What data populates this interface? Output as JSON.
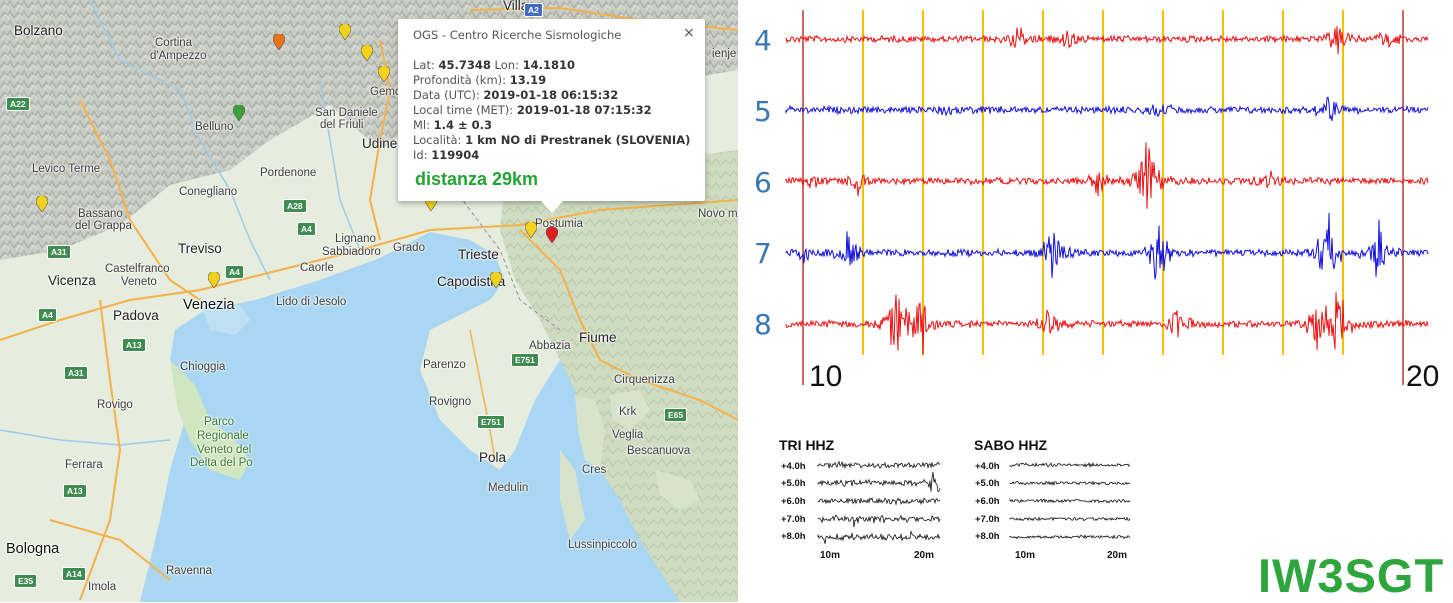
{
  "map": {
    "places": [
      {
        "key": "villaco",
        "text": "Villaco",
        "cls": "city"
      },
      {
        "key": "bolzano",
        "text": "Bolzano",
        "cls": "city"
      },
      {
        "key": "cortina1",
        "text": "Cortina",
        "cls": ""
      },
      {
        "key": "cortina2",
        "text": "d'Ampezzo",
        "cls": ""
      },
      {
        "key": "belluno",
        "text": "Belluno",
        "cls": ""
      },
      {
        "key": "gemona",
        "text": "Gemona",
        "cls": ""
      },
      {
        "key": "sandaniele1",
        "text": "San Daniele",
        "cls": ""
      },
      {
        "key": "sandaniele2",
        "text": "del Friuli",
        "cls": ""
      },
      {
        "key": "udine",
        "text": "Udine",
        "cls": "city"
      },
      {
        "key": "levico1",
        "text": "Levico Terme",
        "cls": ""
      },
      {
        "key": "pordenone",
        "text": "Pordenone",
        "cls": ""
      },
      {
        "key": "conegliano",
        "text": "Conegliano",
        "cls": ""
      },
      {
        "key": "bassano1",
        "text": "Bassano",
        "cls": ""
      },
      {
        "key": "bassano2",
        "text": "del Grappa",
        "cls": ""
      },
      {
        "key": "treviso",
        "text": "Treviso",
        "cls": "city"
      },
      {
        "key": "lignano1",
        "text": "Lignano",
        "cls": ""
      },
      {
        "key": "lignano2",
        "text": "Sabbiadoro",
        "cls": ""
      },
      {
        "key": "grado",
        "text": "Grado",
        "cls": ""
      },
      {
        "key": "caorle",
        "text": "Caorle",
        "cls": ""
      },
      {
        "key": "castelfranco1",
        "text": "Castelfranco",
        "cls": ""
      },
      {
        "key": "castelfranco2",
        "text": "Veneto",
        "cls": ""
      },
      {
        "key": "vicenza",
        "text": "Vicenza",
        "cls": "city"
      },
      {
        "key": "venezia",
        "text": "Venezia",
        "cls": "big"
      },
      {
        "key": "lidojesolo",
        "text": "Lido di Jesolo",
        "cls": ""
      },
      {
        "key": "padova",
        "text": "Padova",
        "cls": "city"
      },
      {
        "key": "chioggia",
        "text": "Chioggia",
        "cls": ""
      },
      {
        "key": "rovigo",
        "text": "Rovigo",
        "cls": ""
      },
      {
        "key": "parco1",
        "text": "Parco",
        "cls": "park"
      },
      {
        "key": "parco2",
        "text": "Regionale",
        "cls": "park"
      },
      {
        "key": "parco3",
        "text": "Veneto del",
        "cls": "park"
      },
      {
        "key": "parco4",
        "text": "Delta del Po",
        "cls": "park"
      },
      {
        "key": "ferrara",
        "text": "Ferrara",
        "cls": ""
      },
      {
        "key": "bologna",
        "text": "Bologna",
        "cls": "big"
      },
      {
        "key": "ravenna",
        "text": "Ravenna",
        "cls": ""
      },
      {
        "key": "imola",
        "text": "Imola",
        "cls": ""
      },
      {
        "key": "trieste",
        "text": "Trieste",
        "cls": "city"
      },
      {
        "key": "capodistria",
        "text": "Capodistria",
        "cls": "city"
      },
      {
        "key": "postumia",
        "text": "Postumia",
        "cls": ""
      },
      {
        "key": "novome",
        "text": "Novo me",
        "cls": ""
      },
      {
        "key": "fiume",
        "text": "Fiume",
        "cls": "city"
      },
      {
        "key": "abbazia",
        "text": "Abbazia",
        "cls": ""
      },
      {
        "key": "parenzo",
        "text": "Parenzo",
        "cls": ""
      },
      {
        "key": "rovigno",
        "text": "Rovigno",
        "cls": ""
      },
      {
        "key": "cirquenizza",
        "text": "Cirquenizza",
        "cls": ""
      },
      {
        "key": "krk",
        "text": "Krk",
        "cls": ""
      },
      {
        "key": "veglia",
        "text": "Veglia",
        "cls": ""
      },
      {
        "key": "bescanuova",
        "text": "Bescanuova",
        "cls": ""
      },
      {
        "key": "pola",
        "text": "Pola",
        "cls": "city"
      },
      {
        "key": "medulin",
        "text": "Medulin",
        "cls": ""
      },
      {
        "key": "cres",
        "text": "Cres",
        "cls": ""
      },
      {
        "key": "lussinpiccolo",
        "text": "Lussinpiccolo",
        "cls": ""
      },
      {
        "key": "ienje",
        "text": "ienje",
        "cls": ""
      }
    ],
    "shields": [
      {
        "key": "a2",
        "text": "A2",
        "color": "blue"
      },
      {
        "key": "a22",
        "text": "A22",
        "color": "green"
      },
      {
        "key": "a28",
        "text": "A28",
        "color": "green"
      },
      {
        "key": "a4a",
        "text": "A4",
        "color": "green"
      },
      {
        "key": "a31a",
        "text": "A31",
        "color": "green"
      },
      {
        "key": "a4b",
        "text": "A4",
        "color": "green"
      },
      {
        "key": "a4c",
        "text": "A4",
        "color": "green"
      },
      {
        "key": "a13a",
        "text": "A13",
        "color": "green"
      },
      {
        "key": "a31b",
        "text": "A31",
        "color": "green"
      },
      {
        "key": "a13b",
        "text": "A13",
        "color": "green"
      },
      {
        "key": "a14",
        "text": "A14",
        "color": "green"
      },
      {
        "key": "e35",
        "text": "E35",
        "color": "green"
      },
      {
        "key": "e751a",
        "text": "E751",
        "color": "green"
      },
      {
        "key": "e751b",
        "text": "E751",
        "color": "green"
      },
      {
        "key": "e65",
        "text": "E65",
        "color": "green"
      }
    ],
    "markers": [
      {
        "key": "m_orange",
        "color": "#e8731a",
        "icon": "map-pin-icon"
      },
      {
        "key": "m_y1",
        "color": "#f2d21a",
        "icon": "map-pin-icon"
      },
      {
        "key": "m_y2",
        "color": "#f2d21a",
        "icon": "map-pin-icon"
      },
      {
        "key": "m_y3",
        "color": "#f2d21a",
        "icon": "map-pin-icon"
      },
      {
        "key": "m_green",
        "color": "#3aa03a",
        "icon": "map-pin-icon"
      },
      {
        "key": "m_y4",
        "color": "#f2d21a",
        "icon": "map-pin-icon"
      },
      {
        "key": "m_y5",
        "color": "#f2d21a",
        "icon": "map-pin-icon"
      },
      {
        "key": "m_y6",
        "color": "#f2d21a",
        "icon": "map-pin-icon"
      },
      {
        "key": "m_y7",
        "color": "#f2d21a",
        "icon": "map-pin-icon"
      },
      {
        "key": "m_y8",
        "color": "#f2d21a",
        "icon": "map-pin-icon"
      },
      {
        "key": "m_red",
        "color": "#e02020",
        "icon": "map-pin-icon"
      }
    ]
  },
  "popup": {
    "title": "OGS - Centro Ricerche Sismologiche",
    "close_icon": "close-icon",
    "close_glyph": "×",
    "lat_label": "Lat:",
    "lat": "45.7348",
    "lon_label": "Lon:",
    "lon": "14.1810",
    "depth_label": "Profondità (km):",
    "depth": "13.19",
    "date_label": "Data (UTC):",
    "date": "2019-01-18 06:15:32",
    "local_label": "Local time (MET):",
    "local": "2019-01-18 07:15:32",
    "ml_label": "Ml:",
    "ml": "1.4 ± 0.3",
    "loc_label": "Località:",
    "loc": "1 km NO di Prestranek (SLOVENIA)",
    "id_label": "Id:",
    "id": "119904",
    "distance": "distanza 29km"
  },
  "seismogram": {
    "traces": [
      {
        "label": "4",
        "color": "#ee1111"
      },
      {
        "label": "5",
        "color": "#1111dd"
      },
      {
        "label": "6",
        "color": "#ee1111"
      },
      {
        "label": "7",
        "color": "#1111dd"
      },
      {
        "label": "8",
        "color": "#ee1111"
      }
    ],
    "start_label": "10",
    "end_label": "20",
    "marker_color": "#f5c000",
    "boundary_color": "#c0392b"
  },
  "helicorders": [
    {
      "title": "TRI HHZ",
      "rows": [
        "+4.0h",
        "+5.0h",
        "+6.0h",
        "+7.0h",
        "+8.0h"
      ],
      "ticks": [
        "10m",
        "20m"
      ]
    },
    {
      "title": "SABO HHZ",
      "rows": [
        "+4.0h",
        "+5.0h",
        "+6.0h",
        "+7.0h",
        "+8.0h"
      ],
      "ticks": [
        "10m",
        "20m"
      ]
    }
  ],
  "callsign": "IW3SGT",
  "callsign_color": "#2ea63d"
}
